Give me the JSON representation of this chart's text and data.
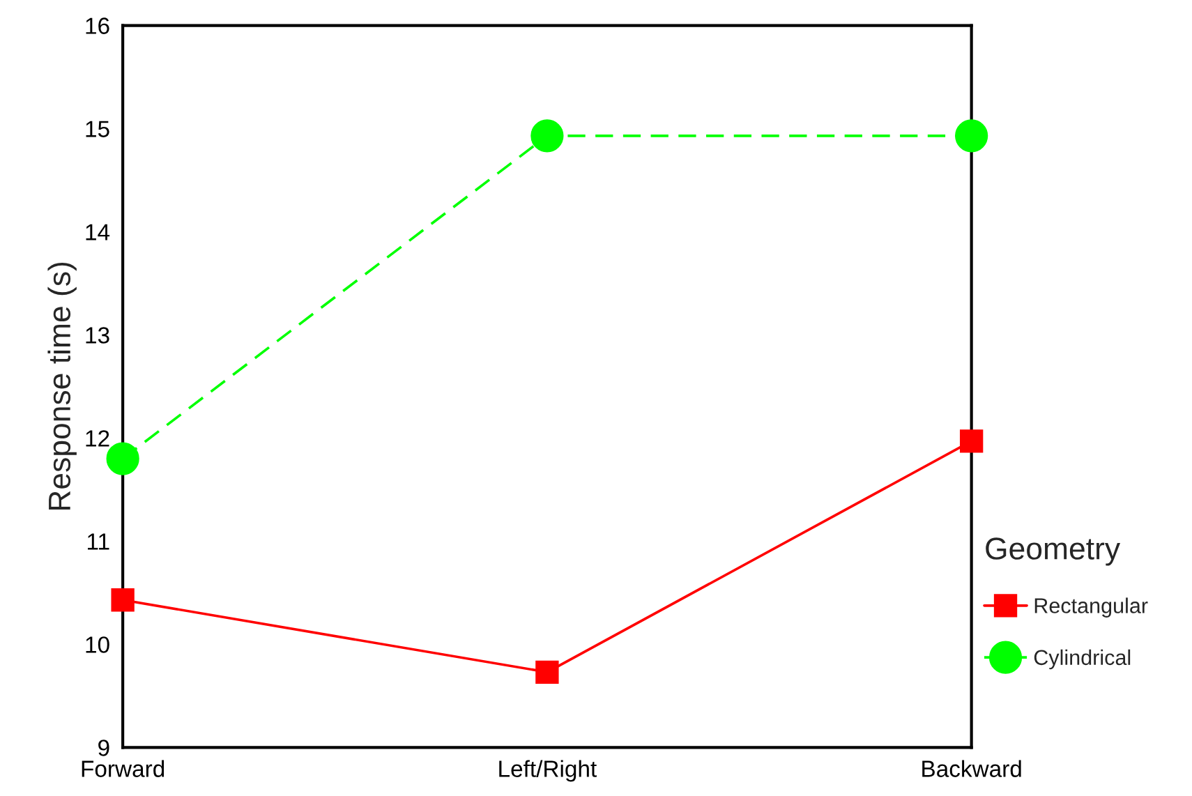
{
  "chart_data": {
    "type": "line",
    "ylabel": "Response time (s)",
    "legend_title": "Geometry",
    "categories": [
      "Forward",
      "Left/Right",
      "Backward"
    ],
    "series": [
      {
        "name": "Rectangular",
        "color": "#ff0000",
        "values": [
          10.43,
          9.73,
          11.97
        ],
        "marker": "square",
        "line_style": "solid"
      },
      {
        "name": "Cylindrical",
        "color": "#00ff00",
        "values": [
          11.8,
          14.93,
          14.93
        ],
        "marker": "circle",
        "line_style": "dashed"
      }
    ],
    "ylim": [
      9,
      16
    ],
    "yticks": [
      9,
      10,
      11,
      12,
      13,
      14,
      15,
      16
    ],
    "grid": false,
    "legend": "right"
  }
}
